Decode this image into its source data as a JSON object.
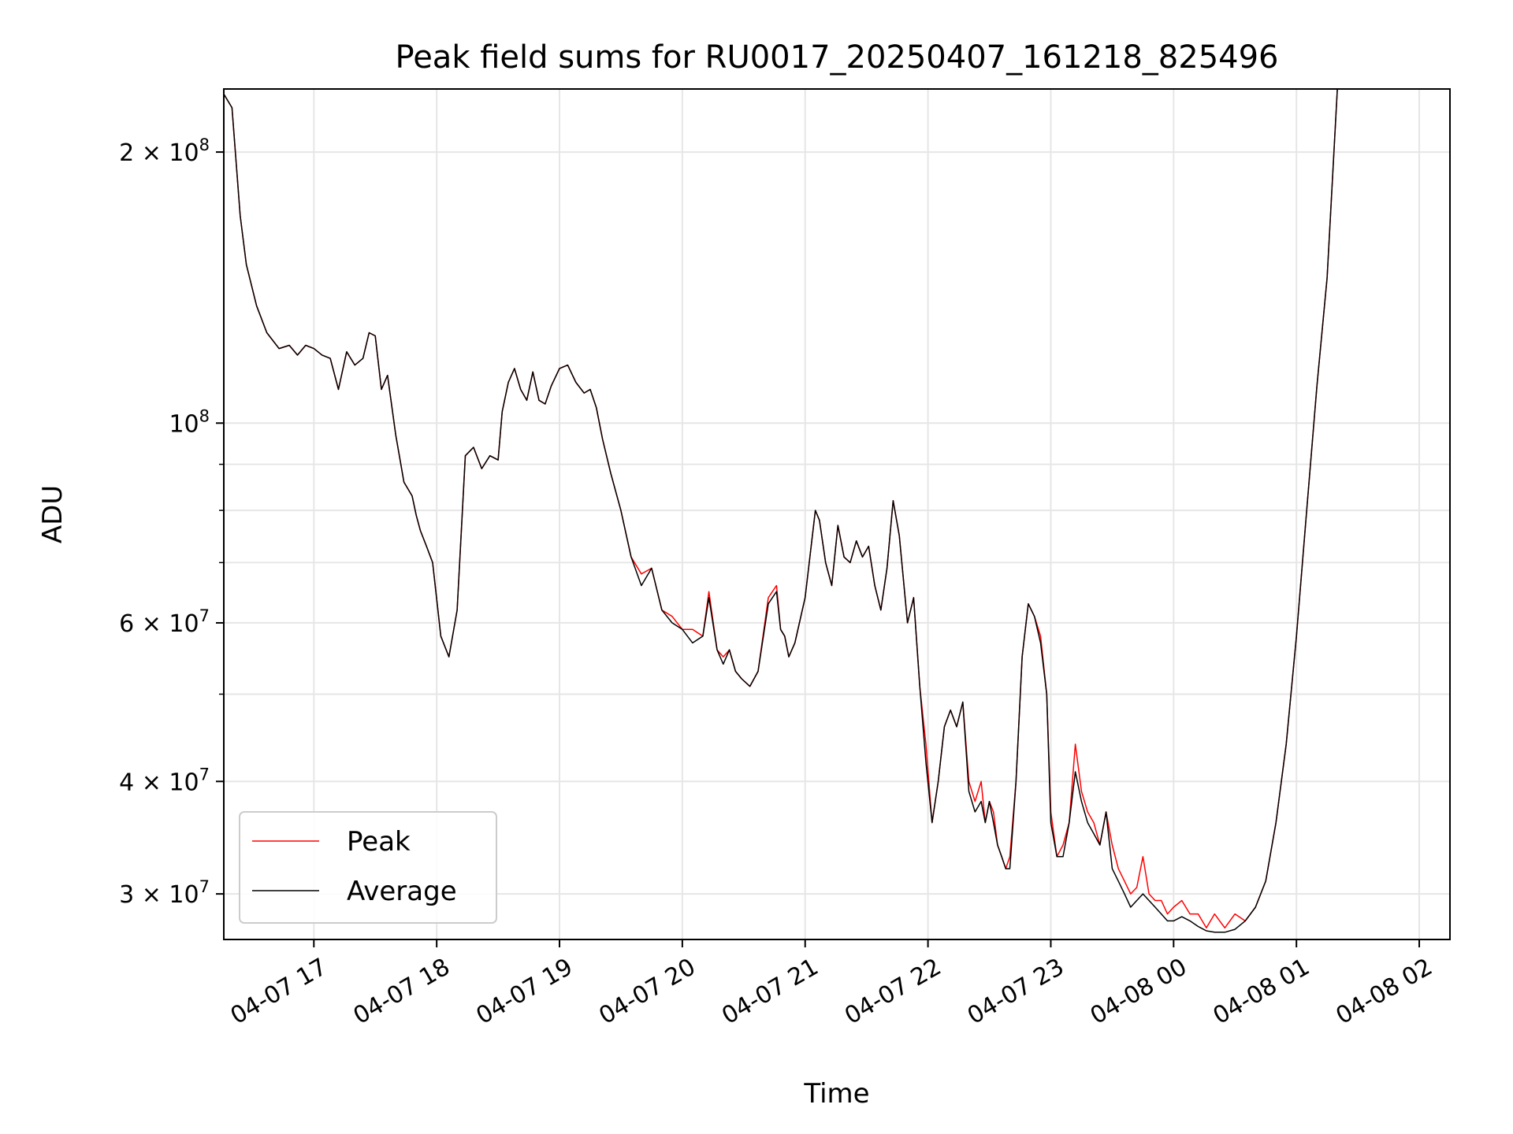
{
  "chart_data": {
    "type": "line",
    "title": "Peak field sums for RU0017_20250407_161218_825496",
    "xlabel": "Time",
    "ylabel": "ADU",
    "yscale": "log",
    "xlim": [
      "2025-04-07 16:16",
      "2025-04-08 02:15"
    ],
    "ylim": [
      26700000,
      235000000
    ],
    "grid": true,
    "legend_position": "lower-left",
    "x_ticks": [
      "04-07 17",
      "04-07 18",
      "04-07 19",
      "04-07 20",
      "04-07 21",
      "04-07 22",
      "04-07 23",
      "04-08 00",
      "04-08 01",
      "04-08 02"
    ],
    "y_ticks": [
      {
        "value": 30000000,
        "mantissa": "3",
        "exponent": "7"
      },
      {
        "value": 40000000,
        "mantissa": "4",
        "exponent": "7"
      },
      {
        "value": 60000000,
        "mantissa": "6",
        "exponent": "7"
      },
      {
        "value": 100000000,
        "mantissa": "",
        "exponent": "8"
      },
      {
        "value": 200000000,
        "mantissa": "2",
        "exponent": "8"
      }
    ],
    "y_minor_ticks": [
      50000000,
      70000000,
      80000000,
      90000000
    ],
    "series": [
      {
        "name": "Peak",
        "color": "#ff0000"
      },
      {
        "name": "Average",
        "color": "#000000"
      }
    ],
    "x": [
      "2025-04-07 16:16",
      "2025-04-07 16:20",
      "2025-04-07 16:24",
      "2025-04-07 16:27",
      "2025-04-07 16:32",
      "2025-04-07 16:37",
      "2025-04-07 16:43",
      "2025-04-07 16:48",
      "2025-04-07 16:52",
      "2025-04-07 16:56",
      "2025-04-07 17:00",
      "2025-04-07 17:04",
      "2025-04-07 17:08",
      "2025-04-07 17:12",
      "2025-04-07 17:16",
      "2025-04-07 17:20",
      "2025-04-07 17:24",
      "2025-04-07 17:27",
      "2025-04-07 17:30",
      "2025-04-07 17:33",
      "2025-04-07 17:36",
      "2025-04-07 17:40",
      "2025-04-07 17:44",
      "2025-04-07 17:48",
      "2025-04-07 17:50",
      "2025-04-07 17:52",
      "2025-04-07 17:55",
      "2025-04-07 17:58",
      "2025-04-07 18:02",
      "2025-04-07 18:06",
      "2025-04-07 18:10",
      "2025-04-07 18:14",
      "2025-04-07 18:18",
      "2025-04-07 18:22",
      "2025-04-07 18:26",
      "2025-04-07 18:30",
      "2025-04-07 18:32",
      "2025-04-07 18:35",
      "2025-04-07 18:38",
      "2025-04-07 18:41",
      "2025-04-07 18:44",
      "2025-04-07 18:47",
      "2025-04-07 18:50",
      "2025-04-07 18:53",
      "2025-04-07 18:56",
      "2025-04-07 19:00",
      "2025-04-07 19:04",
      "2025-04-07 19:08",
      "2025-04-07 19:12",
      "2025-04-07 19:15",
      "2025-04-07 19:18",
      "2025-04-07 19:21",
      "2025-04-07 19:25",
      "2025-04-07 19:30",
      "2025-04-07 19:35",
      "2025-04-07 19:40",
      "2025-04-07 19:45",
      "2025-04-07 19:50",
      "2025-04-07 19:55",
      "2025-04-07 20:00",
      "2025-04-07 20:05",
      "2025-04-07 20:10",
      "2025-04-07 20:13",
      "2025-04-07 20:17",
      "2025-04-07 20:20",
      "2025-04-07 20:23",
      "2025-04-07 20:26",
      "2025-04-07 20:29",
      "2025-04-07 20:33",
      "2025-04-07 20:37",
      "2025-04-07 20:42",
      "2025-04-07 20:46",
      "2025-04-07 20:48",
      "2025-04-07 20:50",
      "2025-04-07 20:52",
      "2025-04-07 20:55",
      "2025-04-07 21:00",
      "2025-04-07 21:05",
      "2025-04-07 21:07",
      "2025-04-07 21:10",
      "2025-04-07 21:13",
      "2025-04-07 21:16",
      "2025-04-07 21:19",
      "2025-04-07 21:22",
      "2025-04-07 21:25",
      "2025-04-07 21:28",
      "2025-04-07 21:31",
      "2025-04-07 21:34",
      "2025-04-07 21:37",
      "2025-04-07 21:40",
      "2025-04-07 21:43",
      "2025-04-07 21:46",
      "2025-04-07 21:50",
      "2025-04-07 21:53",
      "2025-04-07 21:56",
      "2025-04-07 21:59",
      "2025-04-07 22:02",
      "2025-04-07 22:05",
      "2025-04-07 22:08",
      "2025-04-07 22:11",
      "2025-04-07 22:14",
      "2025-04-07 22:17",
      "2025-04-07 22:20",
      "2025-04-07 22:23",
      "2025-04-07 22:26",
      "2025-04-07 22:28",
      "2025-04-07 22:30",
      "2025-04-07 22:32",
      "2025-04-07 22:34",
      "2025-04-07 22:36",
      "2025-04-07 22:38",
      "2025-04-07 22:40",
      "2025-04-07 22:43",
      "2025-04-07 22:46",
      "2025-04-07 22:49",
      "2025-04-07 22:52",
      "2025-04-07 22:55",
      "2025-04-07 22:58",
      "2025-04-07 23:00",
      "2025-04-07 23:03",
      "2025-04-07 23:06",
      "2025-04-07 23:09",
      "2025-04-07 23:12",
      "2025-04-07 23:15",
      "2025-04-07 23:18",
      "2025-04-07 23:21",
      "2025-04-07 23:24",
      "2025-04-07 23:27",
      "2025-04-07 23:30",
      "2025-04-07 23:33",
      "2025-04-07 23:36",
      "2025-04-07 23:39",
      "2025-04-07 23:42",
      "2025-04-07 23:45",
      "2025-04-07 23:48",
      "2025-04-07 23:51",
      "2025-04-07 23:54",
      "2025-04-07 23:57",
      "2025-04-08 00:00",
      "2025-04-08 00:04",
      "2025-04-08 00:08",
      "2025-04-08 00:12",
      "2025-04-08 00:16",
      "2025-04-08 00:20",
      "2025-04-08 00:25",
      "2025-04-08 00:30",
      "2025-04-08 00:35",
      "2025-04-08 00:40",
      "2025-04-08 00:45",
      "2025-04-08 00:50",
      "2025-04-08 00:55",
      "2025-04-08 01:00",
      "2025-04-08 01:05",
      "2025-04-08 01:10",
      "2025-04-08 01:15",
      "2025-04-08 01:20",
      "2025-04-08 01:25",
      "2025-04-08 01:30",
      "2025-04-08 01:35",
      "2025-04-08 01:40",
      "2025-04-08 01:45",
      "2025-04-08 01:50",
      "2025-04-08 01:55",
      "2025-04-08 02:00",
      "2025-04-08 02:03"
    ],
    "average": [
      232000000,
      224000000,
      170000000,
      150000000,
      135000000,
      126000000,
      121000000,
      122000000,
      119000000,
      122000000,
      121000000,
      119000000,
      118000000,
      109000000,
      120000000,
      116000000,
      118000000,
      126000000,
      125000000,
      109000000,
      113000000,
      97000000,
      86000000,
      83000000,
      79000000,
      76000000,
      73000000,
      70000000,
      58000000,
      55000000,
      62000000,
      92000000,
      94000000,
      89000000,
      92000000,
      91000000,
      103000000,
      111000000,
      115000000,
      109000000,
      106000000,
      114000000,
      106000000,
      105000000,
      110000000,
      115000000,
      116000000,
      111000000,
      108000000,
      109000000,
      104000000,
      96000000,
      88000000,
      80000000,
      71000000,
      66000000,
      69000000,
      62000000,
      60000000,
      59000000,
      57000000,
      58000000,
      64000000,
      56000000,
      54000000,
      56000000,
      53000000,
      52000000,
      51000000,
      53000000,
      63000000,
      65000000,
      59000000,
      58000000,
      55000000,
      57000000,
      64000000,
      80000000,
      78000000,
      70000000,
      66000000,
      77000000,
      71000000,
      70000000,
      74000000,
      71000000,
      73000000,
      66000000,
      62000000,
      69000000,
      82000000,
      75000000,
      60000000,
      64000000,
      51000000,
      42000000,
      36000000,
      40000000,
      46000000,
      48000000,
      46000000,
      49000000,
      39000000,
      37000000,
      38000000,
      36000000,
      38000000,
      36000000,
      34000000,
      33000000,
      32000000,
      32000000,
      40000000,
      55000000,
      63000000,
      61000000,
      57000000,
      50000000,
      36000000,
      33000000,
      33000000,
      36000000,
      41000000,
      38000000,
      36000000,
      35000000,
      34000000,
      37000000,
      32000000,
      31000000,
      30000000,
      29000000,
      29500000,
      30000000,
      29500000,
      29000000,
      28500000,
      28000000,
      28000000,
      28300000,
      28000000,
      27600000,
      27300000,
      27200000,
      27200000,
      27400000,
      28000000,
      29000000,
      31000000,
      36000000,
      44000000,
      58000000,
      80000000,
      110000000,
      145000000,
      235000000
    ],
    "peak": [
      232000000,
      224000000,
      170000000,
      150000000,
      135000000,
      126000000,
      121000000,
      122000000,
      119000000,
      122000000,
      121000000,
      119000000,
      118000000,
      109000000,
      120000000,
      116000000,
      118000000,
      126000000,
      125000000,
      109000000,
      113000000,
      97000000,
      86000000,
      83000000,
      79000000,
      76000000,
      73000000,
      70000000,
      58000000,
      55000000,
      62000000,
      92000000,
      94000000,
      89000000,
      92000000,
      91000000,
      103000000,
      111000000,
      115000000,
      109000000,
      106000000,
      114000000,
      106000000,
      105000000,
      110000000,
      115000000,
      116000000,
      111000000,
      108000000,
      109000000,
      104000000,
      96000000,
      88000000,
      80000000,
      71000000,
      68000000,
      69000000,
      62000000,
      61000000,
      59000000,
      59000000,
      58000000,
      65000000,
      56000000,
      55000000,
      56000000,
      53000000,
      52000000,
      51000000,
      53000000,
      64000000,
      66000000,
      59000000,
      58000000,
      55000000,
      57000000,
      64000000,
      80000000,
      78000000,
      70000000,
      66000000,
      77000000,
      71000000,
      70000000,
      74000000,
      71000000,
      73000000,
      66000000,
      62000000,
      69000000,
      82000000,
      75000000,
      60000000,
      64000000,
      51000000,
      44000000,
      36000000,
      40000000,
      46000000,
      48000000,
      46000000,
      49000000,
      40000000,
      38000000,
      40000000,
      36000000,
      38000000,
      37000000,
      34000000,
      33000000,
      32000000,
      33000000,
      40000000,
      55000000,
      63000000,
      61000000,
      58000000,
      50000000,
      37000000,
      33000000,
      34000000,
      36000000,
      44000000,
      39000000,
      37000000,
      36000000,
      34000000,
      37000000,
      34000000,
      32000000,
      31000000,
      30000000,
      30500000,
      33000000,
      30000000,
      29500000,
      29500000,
      28500000,
      29000000,
      29500000,
      28500000,
      28500000,
      27500000,
      28500000,
      27500000,
      28500000,
      28000000,
      29000000,
      31000000,
      36000000,
      44000000,
      58000000,
      80000000,
      110000000,
      145000000,
      235000000
    ]
  }
}
